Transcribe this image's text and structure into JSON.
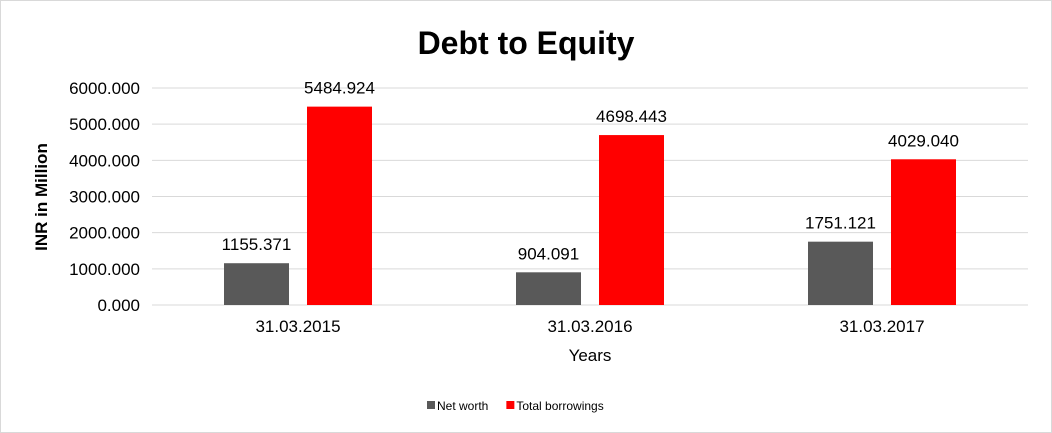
{
  "chart_data": {
    "type": "bar",
    "title": "Debt to Equity",
    "xlabel": "Years",
    "ylabel": "INR in Million",
    "categories": [
      "31.03.2015",
      "31.03.2016",
      "31.03.2017"
    ],
    "series": [
      {
        "name": "Net worth",
        "color": "#595959",
        "values": [
          1155.371,
          904.091,
          1751.121
        ],
        "labels": [
          "1155.371",
          "904.091",
          "1751.121"
        ]
      },
      {
        "name": "Total borrowings",
        "color": "#ff0000",
        "values": [
          5484.924,
          4698.443,
          4029.04
        ],
        "labels": [
          "5484.924",
          "4698.443",
          "4029.040"
        ]
      }
    ],
    "ylim": [
      0,
      6000
    ],
    "yticks": [
      "0.000",
      "1000.000",
      "2000.000",
      "3000.000",
      "4000.000",
      "5000.000",
      "6000.000"
    ],
    "grid": true,
    "legend": "bottom"
  }
}
